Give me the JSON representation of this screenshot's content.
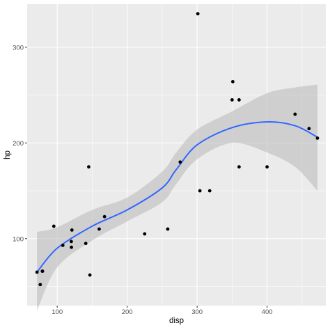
{
  "chart_data": {
    "type": "scatter",
    "xlabel": "disp",
    "ylabel": "hp",
    "xlim": [
      57,
      484
    ],
    "ylim": [
      30,
      345
    ],
    "xticks": [
      100,
      200,
      300,
      400
    ],
    "yticks": [
      100,
      200,
      300
    ],
    "grid": true,
    "legend": "none",
    "colors": {
      "panel": "#ebebeb",
      "grid_major": "#ffffff",
      "point": "#000000",
      "smooth_line": "#3366ff",
      "ribbon": "#bdbdbd"
    },
    "points": [
      {
        "x": 71.1,
        "y": 65
      },
      {
        "x": 75.7,
        "y": 52
      },
      {
        "x": 78.7,
        "y": 66
      },
      {
        "x": 79.0,
        "y": 66
      },
      {
        "x": 95.1,
        "y": 113
      },
      {
        "x": 108.0,
        "y": 93
      },
      {
        "x": 120.1,
        "y": 97
      },
      {
        "x": 120.3,
        "y": 91
      },
      {
        "x": 121.0,
        "y": 109
      },
      {
        "x": 140.8,
        "y": 95
      },
      {
        "x": 145.0,
        "y": 175
      },
      {
        "x": 146.7,
        "y": 62
      },
      {
        "x": 160.0,
        "y": 110
      },
      {
        "x": 167.6,
        "y": 123
      },
      {
        "x": 225.0,
        "y": 105
      },
      {
        "x": 258.0,
        "y": 110
      },
      {
        "x": 275.8,
        "y": 180
      },
      {
        "x": 301.0,
        "y": 335
      },
      {
        "x": 304.0,
        "y": 150
      },
      {
        "x": 318.0,
        "y": 150
      },
      {
        "x": 350.0,
        "y": 245
      },
      {
        "x": 351.0,
        "y": 264
      },
      {
        "x": 360.0,
        "y": 175
      },
      {
        "x": 360.0,
        "y": 245
      },
      {
        "x": 400.0,
        "y": 175
      },
      {
        "x": 440.0,
        "y": 230
      },
      {
        "x": 460.0,
        "y": 215
      },
      {
        "x": 472.0,
        "y": 205
      }
    ],
    "smooth": [
      {
        "x": 71.1,
        "y": 65,
        "lo": 25,
        "hi": 107
      },
      {
        "x": 100,
        "y": 90,
        "lo": 70,
        "hi": 112
      },
      {
        "x": 150,
        "y": 113,
        "lo": 98,
        "hi": 130
      },
      {
        "x": 200,
        "y": 130,
        "lo": 118,
        "hi": 143
      },
      {
        "x": 250,
        "y": 153,
        "lo": 138,
        "hi": 170
      },
      {
        "x": 270,
        "y": 172,
        "lo": 157,
        "hi": 190
      },
      {
        "x": 300,
        "y": 198,
        "lo": 183,
        "hi": 214
      },
      {
        "x": 350,
        "y": 216,
        "lo": 200,
        "hi": 233
      },
      {
        "x": 400,
        "y": 222,
        "lo": 190,
        "hi": 252
      },
      {
        "x": 440,
        "y": 218,
        "lo": 175,
        "hi": 258
      },
      {
        "x": 472,
        "y": 206,
        "lo": 150,
        "hi": 261
      }
    ]
  }
}
